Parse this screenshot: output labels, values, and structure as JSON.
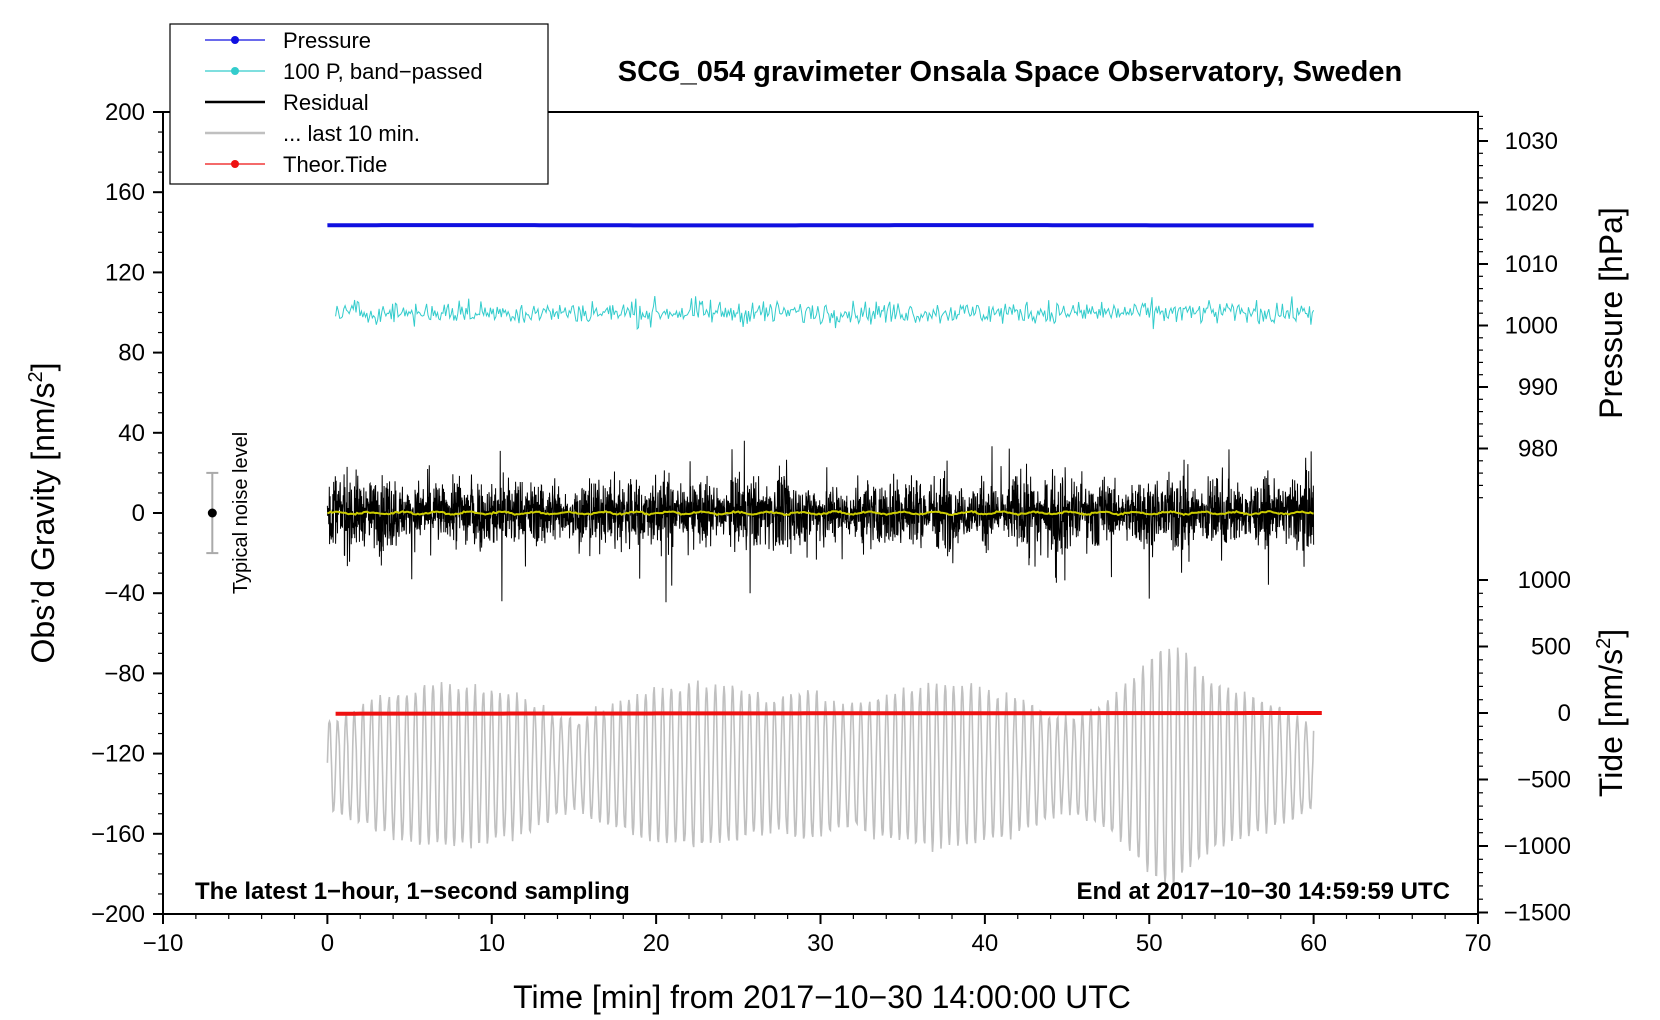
{
  "chart_data": {
    "type": "line",
    "title": "SCG_054 gravimeter Onsala Space Observatory, Sweden",
    "xlabel": "Time [min] from 2017−10−30 14:00:00 UTC",
    "ylabel_left": "Obs’d Gravity [nm/s",
    "ylabel_left_sup": "2",
    "ylabel_left_end": "]",
    "ylabel_right_pressure": "Pressure [hPa]",
    "ylabel_right_tide": "Tide [nm/s",
    "ylabel_right_tide_sup": "2",
    "ylabel_right_tide_end": "]",
    "xlim": [
      -10,
      70
    ],
    "ylim_left": [
      -200,
      200
    ],
    "xticks": [
      "−10",
      "0",
      "10",
      "20",
      "30",
      "40",
      "50",
      "60",
      "70"
    ],
    "xtick_values": [
      -10,
      0,
      10,
      20,
      30,
      40,
      50,
      60,
      70
    ],
    "yticks_left": [
      "200",
      "160",
      "120",
      "80",
      "40",
      "0",
      "−40",
      "−80",
      "−120",
      "−160",
      "−200"
    ],
    "ytick_values_left": [
      200,
      160,
      120,
      80,
      40,
      0,
      -40,
      -80,
      -120,
      -160,
      -200
    ],
    "pressure_axis": {
      "ticks": [
        "1030",
        "1020",
        "1010",
        "1000",
        "990",
        "980"
      ],
      "tick_values": [
        1030,
        1020,
        1010,
        1000,
        990,
        980
      ]
    },
    "tide_axis": {
      "ticks": [
        "1000",
        "500",
        "0",
        "−500",
        "−1000",
        "−1500"
      ],
      "tick_values": [
        1000,
        500,
        0,
        -500,
        -1000,
        -1500
      ]
    },
    "noise_label": "Typical noise level",
    "noise_marker": {
      "x": -7,
      "center": 0,
      "halfwidth": 20
    },
    "note_left": "The latest 1−hour, 1−second sampling",
    "note_right": "End at 2017−10−30 14:59:59 UTC",
    "legend": [
      {
        "label": "Pressure",
        "color": "#1010e0",
        "marker": true
      },
      {
        "label": "100 P, band−passed",
        "color": "#33cccc",
        "marker": true
      },
      {
        "label": "Residual",
        "color": "#000000",
        "marker": false
      },
      {
        "label": "... last 10 min.",
        "color": "#c0c0c0",
        "marker": false
      },
      {
        "label": "Theor.Tide",
        "color": "#ee1111",
        "marker": true
      }
    ],
    "series": [
      {
        "name": "Pressure",
        "axis": "pressure",
        "color": "#1010e0",
        "x_range": [
          0,
          60
        ],
        "approx_value": 1016.3
      },
      {
        "name": "100 P, band−passed",
        "axis": "gravity",
        "color": "#33cccc",
        "x_range": [
          0.5,
          60
        ],
        "approx_center": 100,
        "approx_amplitude": 6
      },
      {
        "name": "Residual",
        "axis": "gravity",
        "color": "#000000",
        "x_range": [
          0,
          60
        ],
        "approx_center": 0,
        "approx_amplitude": 55
      },
      {
        "name": "Residual smoothed",
        "axis": "gravity",
        "color": "#cccc00",
        "x_range": [
          0,
          60
        ],
        "approx_center": 0,
        "approx_amplitude": 1
      },
      {
        "name": "... last 10 min.",
        "axis": "gravity",
        "color": "#c0c0c0",
        "x_range": [
          0,
          60
        ],
        "approx_center": -126,
        "approx_amplitude": 40
      },
      {
        "name": "Theor.Tide",
        "axis": "tide",
        "color": "#ee1111",
        "x_range": [
          0.5,
          60.5
        ],
        "approx_start": -5,
        "approx_end": 0
      }
    ]
  }
}
